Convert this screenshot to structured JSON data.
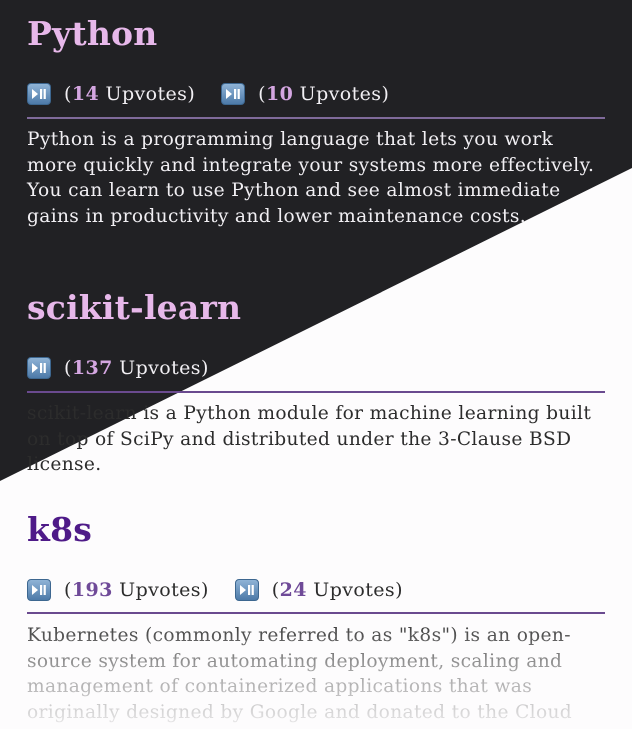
{
  "colors": {
    "dark_bg": "#212124",
    "light_bg": "#fdfcfd",
    "dark_title": "#e7b8ea",
    "light_title": "#4e1a88",
    "vote_button": "#4d7aa8"
  },
  "vote_icon": "play-pause-icon",
  "entries": [
    {
      "title": "Python",
      "votes": [
        {
          "count": "14",
          "label": "Upvotes"
        },
        {
          "count": "10",
          "label": "Upvotes"
        }
      ],
      "description": "Python is a programming language that lets you work more quickly and integrate your systems more effectively. You can learn to use Python and see almost immediate gains in productivity and lower maintenance costs."
    },
    {
      "title": "scikit-learn",
      "votes": [
        {
          "count": "137",
          "label": "Upvotes"
        }
      ],
      "description": "scikit-learn is a Python module for machine learning built on top of SciPy and distributed under the 3-Clause BSD license."
    },
    {
      "title": "k8s",
      "votes": [
        {
          "count": "193",
          "label": "Upvotes"
        },
        {
          "count": "24",
          "label": "Upvotes"
        }
      ],
      "description": "Kubernetes (commonly referred to as \"k8s\") is an open-source system for automating deployment, scaling and management of containerized applications that was originally designed by Google and donated to the Cloud"
    }
  ]
}
